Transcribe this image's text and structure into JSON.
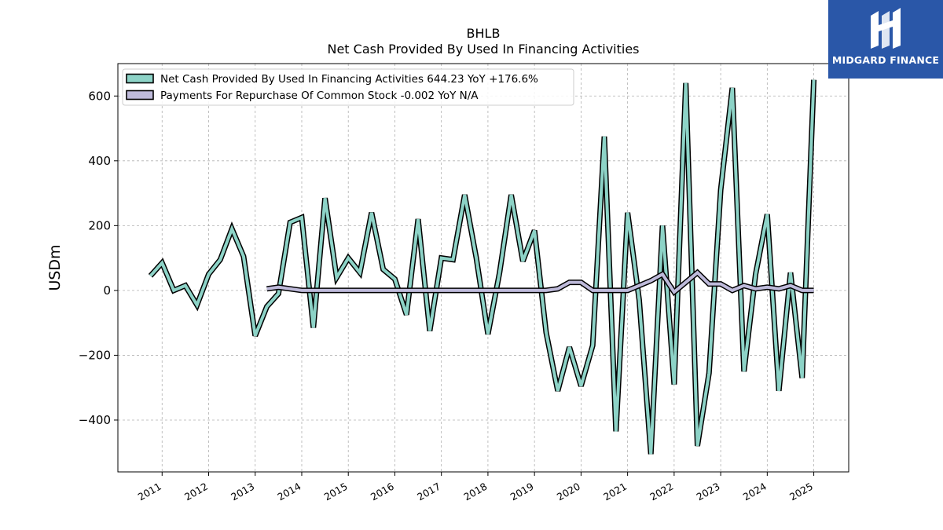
{
  "brand": {
    "name": "MIDGARD FINANCE",
    "color": "#2a57a8"
  },
  "chart_data": {
    "type": "line",
    "title": "BHLB",
    "subtitle": "Net Cash Provided By Used In Financing Activities",
    "xlabel": "",
    "ylabel": "USDm",
    "ylim": [
      -560,
      700
    ],
    "xlim": [
      2010.05,
      2025.75
    ],
    "yticks": [
      -400,
      -200,
      0,
      200,
      400,
      600
    ],
    "ytick_labels": [
      "−400",
      "−200",
      "0",
      "200",
      "400",
      "600"
    ],
    "xticks": [
      "2011",
      "2012",
      "2013",
      "2014",
      "2015",
      "2016",
      "2017",
      "2018",
      "2019",
      "2020",
      "2021",
      "2022",
      "2023",
      "2024",
      "2025"
    ],
    "grid": true,
    "legend_position": "top-left",
    "series": [
      {
        "name": "Net Cash Provided By Used In Financing Activities  644.23 YoY +176.6%",
        "color": "#8dd3c7",
        "x": [
          2010.75,
          2011.0,
          2011.25,
          2011.5,
          2011.75,
          2012.0,
          2012.25,
          2012.5,
          2012.75,
          2013.0,
          2013.25,
          2013.5,
          2013.75,
          2014.0,
          2014.25,
          2014.5,
          2014.75,
          2015.0,
          2015.25,
          2015.5,
          2015.75,
          2016.0,
          2016.25,
          2016.5,
          2016.75,
          2017.0,
          2017.25,
          2017.5,
          2017.75,
          2018.0,
          2018.25,
          2018.5,
          2018.75,
          2019.0,
          2019.25,
          2019.5,
          2019.75,
          2020.0,
          2020.25,
          2020.5,
          2020.75,
          2021.0,
          2021.25,
          2021.5,
          2021.75,
          2022.0,
          2022.25,
          2022.5,
          2022.75,
          2023.0,
          2023.25,
          2023.5,
          2023.75,
          2024.0,
          2024.25,
          2024.5,
          2024.75,
          2025.0
        ],
        "values": [
          45,
          85,
          0,
          15,
          -45,
          50,
          95,
          190,
          105,
          -140,
          -50,
          -10,
          210,
          225,
          -115,
          285,
          40,
          100,
          55,
          240,
          65,
          35,
          -75,
          220,
          -125,
          100,
          95,
          295,
          100,
          -135,
          55,
          295,
          90,
          185,
          -130,
          -310,
          -175,
          -295,
          -170,
          475,
          -435,
          240,
          -30,
          -505,
          200,
          -290,
          640,
          -480,
          -255,
          310,
          625,
          -250,
          50,
          235,
          -310,
          55,
          -270,
          650
        ]
      },
      {
        "name": "Payments For Repurchase Of Common Stock  -0.002 YoY N/A",
        "color": "#bebada",
        "x": [
          2013.25,
          2013.5,
          2013.75,
          2014.0,
          2014.25,
          2014.5,
          2014.75,
          2015.0,
          2015.25,
          2015.5,
          2015.75,
          2016.0,
          2016.25,
          2016.5,
          2016.75,
          2017.0,
          2017.25,
          2017.5,
          2017.75,
          2018.0,
          2018.25,
          2018.5,
          2018.75,
          2019.0,
          2019.25,
          2019.5,
          2019.75,
          2020.0,
          2020.25,
          2020.5,
          2020.75,
          2021.0,
          2021.25,
          2021.5,
          2021.75,
          2022.0,
          2022.25,
          2022.5,
          2022.75,
          2023.0,
          2023.25,
          2023.5,
          2023.75,
          2024.0,
          2024.25,
          2024.5,
          2024.75,
          2025.0
        ],
        "values": [
          5,
          10,
          5,
          0,
          0,
          0,
          0,
          0,
          0,
          0,
          0,
          0,
          0,
          0,
          0,
          0,
          0,
          0,
          0,
          0,
          0,
          0,
          0,
          0,
          0,
          5,
          25,
          25,
          0,
          0,
          0,
          0,
          15,
          30,
          50,
          -5,
          25,
          55,
          20,
          20,
          0,
          15,
          5,
          10,
          5,
          15,
          0,
          0
        ]
      }
    ]
  }
}
